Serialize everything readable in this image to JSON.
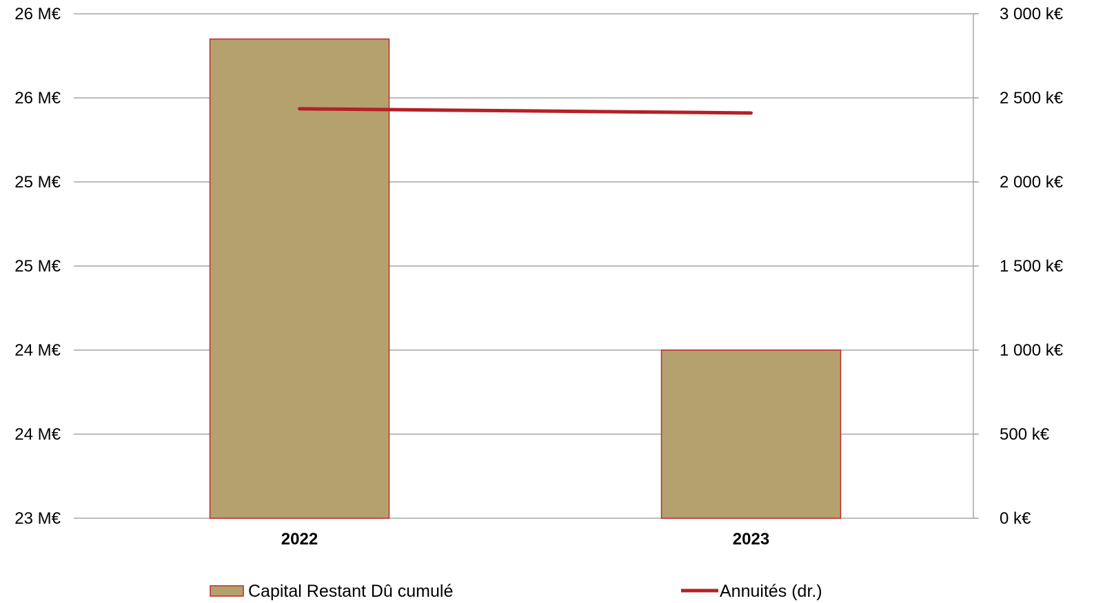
{
  "chart_data": {
    "type": "bar",
    "categories": [
      "2022",
      "2023"
    ],
    "series": [
      {
        "name": "Capital Restant Dû cumulé",
        "axis": "left",
        "kind": "bar",
        "values": [
          25.85,
          24.0
        ]
      },
      {
        "name": "Annuités (dr.)",
        "axis": "right",
        "kind": "line",
        "values": [
          2435,
          2410
        ]
      }
    ],
    "y_left": {
      "ticks": [
        23,
        23.5,
        24,
        24.5,
        25,
        25.5,
        26
      ],
      "tick_labels": [
        "23 M€",
        "24 M€",
        "24 M€",
        "25 M€",
        "25 M€",
        "26 M€",
        "26 M€"
      ],
      "ylim": [
        23,
        26
      ]
    },
    "y_right": {
      "ticks": [
        0,
        500,
        1000,
        1500,
        2000,
        2500,
        3000
      ],
      "tick_labels": [
        "0 k€",
        "500 k€",
        "1 000 k€",
        "1 500 k€",
        "2 000 k€",
        "2 500 k€",
        "3 000 k€"
      ],
      "ylim": [
        0,
        3000
      ]
    },
    "grid": true,
    "legend": "bottom",
    "colors": {
      "bar_fill": "#b5a16e",
      "bar_stroke": "#c0282d",
      "line": "#b52025",
      "grid": "#a6a6a6"
    }
  }
}
